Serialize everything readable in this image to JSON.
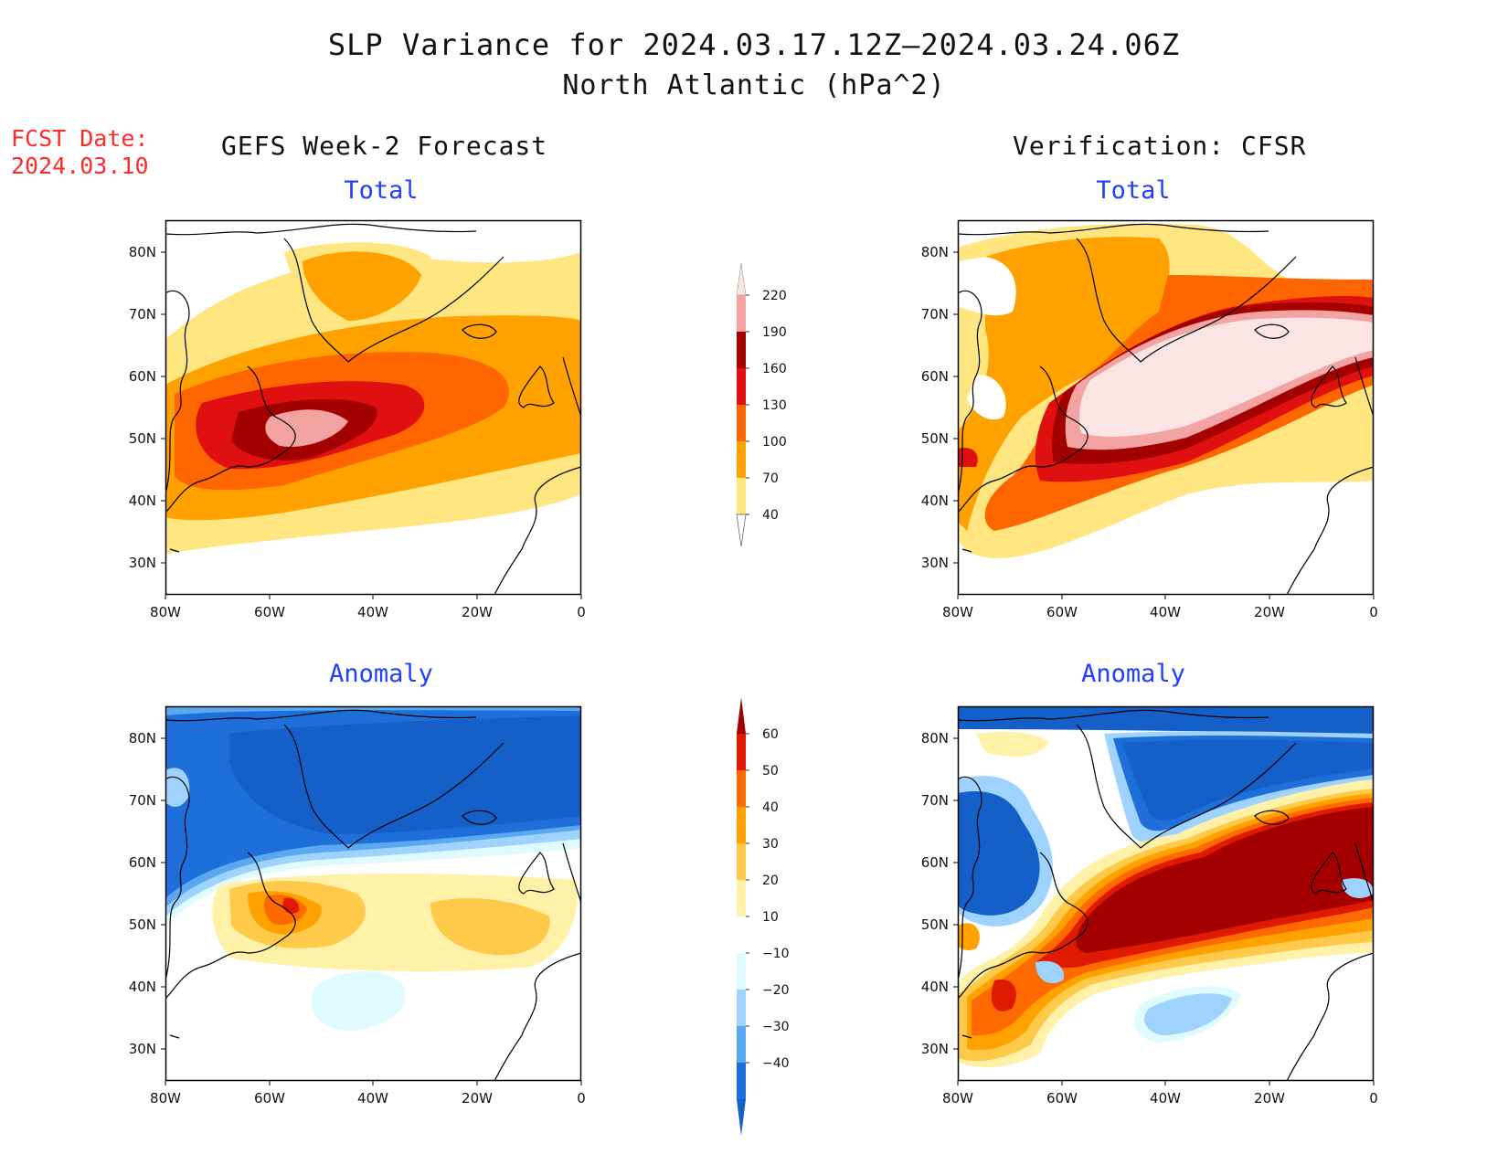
{
  "header": {
    "title": "SLP Variance for 2024.03.17.12Z–2024.03.24.06Z",
    "subtitle": "North Atlantic (hPa^2)",
    "fcst_label": "FCST Date:",
    "fcst_value": "2024.03.10"
  },
  "columns": {
    "left": "GEFS Week-2 Forecast",
    "right": "Verification: CFSR"
  },
  "panel_titles": {
    "total": "Total",
    "anomaly": "Anomaly"
  },
  "axes": {
    "lon_ticks": [
      "80W",
      "60W",
      "40W",
      "20W",
      "0"
    ],
    "lat_ticks": [
      "80N",
      "70N",
      "60N",
      "50N",
      "40N",
      "30N"
    ],
    "lon_range": [
      -80,
      0
    ],
    "lat_range": [
      25,
      85
    ]
  },
  "colorbars": {
    "total": {
      "levels": [
        "220",
        "190",
        "160",
        "130",
        "100",
        "70",
        "40"
      ],
      "colors": [
        "#fbe4e4",
        "#f4a3a3",
        "#a30000",
        "#e01010",
        "#ff6600",
        "#ffa200",
        "#ffe680"
      ]
    },
    "anomaly": {
      "levels": [
        "60",
        "50",
        "40",
        "30",
        "20",
        "10",
        "−10",
        "−20",
        "−30",
        "−40"
      ],
      "colors": [
        "#a50000",
        "#e01a00",
        "#ff6a00",
        "#ffa200",
        "#ffc94a",
        "#fff2a8",
        "#ffffff",
        "#e0fbff",
        "#9fd3ff",
        "#5aa8f0",
        "#1e6fd9",
        "#1460c8"
      ]
    }
  },
  "colors": {
    "title_text": "#111111",
    "fcst_text": "#ff2a2a",
    "subtitle_text": "#1f3fff",
    "coast": "#000000"
  }
}
